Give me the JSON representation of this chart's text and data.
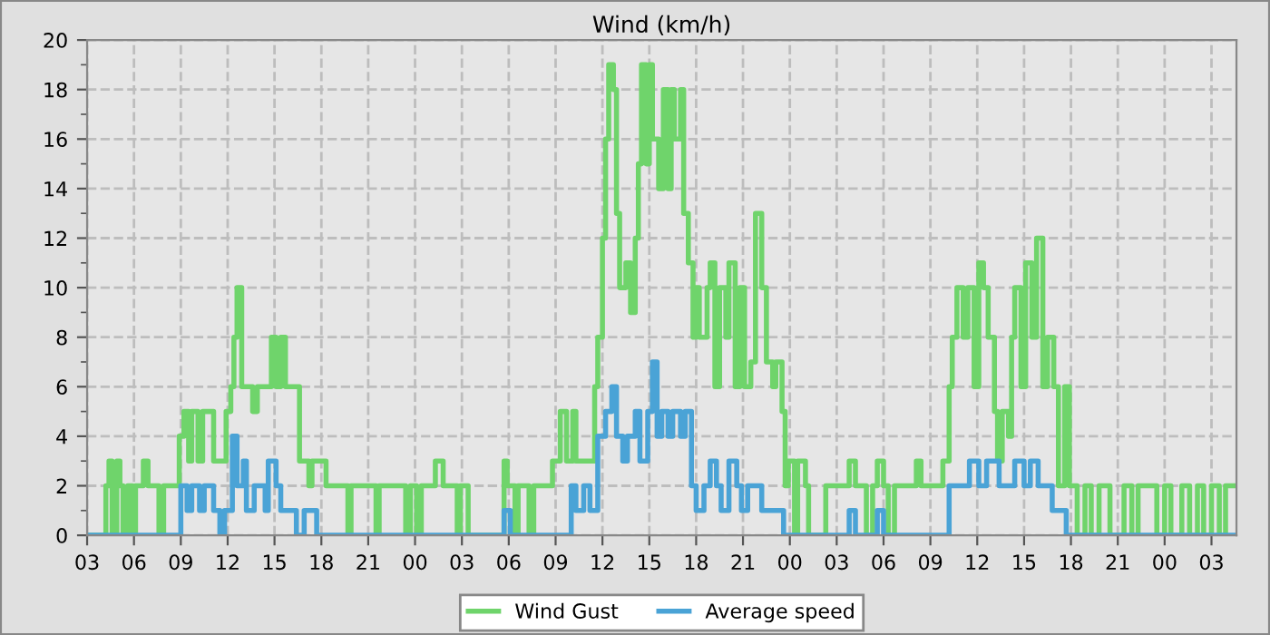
{
  "chart_data": {
    "type": "step",
    "title": "Wind (km/h)",
    "xlim": [
      3,
      76.6
    ],
    "ylim": [
      0,
      20
    ],
    "xticks": [
      {
        "value": 3,
        "label": "03"
      },
      {
        "value": 6,
        "label": "06"
      },
      {
        "value": 9,
        "label": "09"
      },
      {
        "value": 12,
        "label": "12"
      },
      {
        "value": 15,
        "label": "15"
      },
      {
        "value": 18,
        "label": "18"
      },
      {
        "value": 21,
        "label": "21"
      },
      {
        "value": 24,
        "label": "00"
      },
      {
        "value": 27,
        "label": "03"
      },
      {
        "value": 30,
        "label": "06"
      },
      {
        "value": 33,
        "label": "09"
      },
      {
        "value": 36,
        "label": "12"
      },
      {
        "value": 39,
        "label": "15"
      },
      {
        "value": 42,
        "label": "18"
      },
      {
        "value": 45,
        "label": "21"
      },
      {
        "value": 48,
        "label": "00"
      },
      {
        "value": 51,
        "label": "03"
      },
      {
        "value": 54,
        "label": "06"
      },
      {
        "value": 57,
        "label": "09"
      },
      {
        "value": 60,
        "label": "12"
      },
      {
        "value": 63,
        "label": "15"
      },
      {
        "value": 66,
        "label": "18"
      },
      {
        "value": 69,
        "label": "21"
      },
      {
        "value": 72,
        "label": "00"
      },
      {
        "value": 75,
        "label": "03"
      }
    ],
    "yticks": [
      0,
      {
        "value": 1,
        "label": null
      },
      2,
      {
        "value": 3,
        "label": null
      },
      4,
      {
        "value": 5,
        "label": null
      },
      6,
      {
        "value": 7,
        "label": null
      },
      8,
      {
        "value": 9,
        "label": null
      },
      10,
      {
        "value": 11,
        "label": null
      },
      12,
      {
        "value": 13,
        "label": null
      },
      14,
      {
        "value": 15,
        "label": null
      },
      16,
      {
        "value": 17,
        "label": null
      },
      18,
      {
        "value": 19,
        "label": null
      },
      20
    ],
    "grid": true,
    "legend": "bottom",
    "line_style": "solid",
    "series": [
      {
        "name": "Wind Gust",
        "color": "#6fd46b",
        "x": [
          3.0,
          4.2,
          4.4,
          4.6,
          4.9,
          5.1,
          5.3,
          5.6,
          5.9,
          6.1,
          6.6,
          6.9,
          7.6,
          7.9,
          8.6,
          8.9,
          9.2,
          9.5,
          9.7,
          10.1,
          10.4,
          10.8,
          11.1,
          11.5,
          11.9,
          12.2,
          12.4,
          12.6,
          12.9,
          13.2,
          13.6,
          13.9,
          14.5,
          14.8,
          15.1,
          15.4,
          15.7,
          16.5,
          16.6,
          17.2,
          17.4,
          17.9,
          18.3,
          19.5,
          19.7,
          19.9,
          21.2,
          21.5,
          21.7,
          23.4,
          23.7,
          24.1,
          24.4,
          25.3,
          25.8,
          26.7,
          26.9,
          27.4,
          29.7,
          29.9,
          30.4,
          30.6,
          31.3,
          31.6,
          32.3,
          32.8,
          33.3,
          33.7,
          34.1,
          34.3,
          35.3,
          35.5,
          35.7,
          36.0,
          36.2,
          36.4,
          36.7,
          36.9,
          37.1,
          37.5,
          37.8,
          38.1,
          38.3,
          38.5,
          38.8,
          39.0,
          39.2,
          39.6,
          39.9,
          40.2,
          40.4,
          40.6,
          41.0,
          41.2,
          41.5,
          41.8,
          42.0,
          42.2,
          42.7,
          42.9,
          43.2,
          43.5,
          43.9,
          44.1,
          44.5,
          44.8,
          45.1,
          45.5,
          45.8,
          46.2,
          46.5,
          46.9,
          47.1,
          47.5,
          47.7,
          47.9,
          48.3,
          48.5,
          49.0,
          49.2,
          49.9,
          50.3,
          51.8,
          52.2,
          52.9,
          53.3,
          53.6,
          54.0,
          54.3,
          54.7,
          56.1,
          56.4,
          57.2,
          57.8,
          58.2,
          58.4,
          58.7,
          59.1,
          59.4,
          59.8,
          60.1,
          60.4,
          60.7,
          61.1,
          61.3,
          61.6,
          62.0,
          62.2,
          62.4,
          62.8,
          63.1,
          63.5,
          63.8,
          64.2,
          64.5,
          64.9,
          65.2,
          65.6,
          65.9,
          66.4,
          66.9,
          67.3,
          67.8,
          68.5,
          69.4,
          69.9,
          70.3,
          71.0,
          71.5,
          72.0,
          72.4,
          73.1,
          73.6,
          74.1,
          74.5,
          75.0,
          75.5,
          75.9,
          76.6
        ],
        "values": [
          0,
          2,
          3,
          0,
          3,
          2,
          0,
          2,
          0,
          2,
          3,
          2,
          0,
          2,
          2,
          4,
          5,
          3,
          5,
          3,
          5,
          5,
          3,
          3,
          5,
          6,
          8,
          10,
          6,
          6,
          5,
          6,
          6,
          8,
          6,
          8,
          6,
          6,
          3,
          2,
          3,
          3,
          2,
          2,
          0,
          2,
          2,
          0,
          2,
          0,
          2,
          0,
          2,
          3,
          2,
          0,
          2,
          0,
          3,
          2,
          0,
          2,
          0,
          2,
          2,
          3,
          5,
          3,
          5,
          3,
          3,
          6,
          8,
          12,
          16,
          19,
          18,
          13,
          10,
          11,
          9,
          12,
          15,
          19,
          15,
          19,
          16,
          14,
          18,
          14,
          18,
          16,
          18,
          13,
          11,
          8,
          10,
          8,
          10,
          11,
          6,
          10,
          8,
          11,
          6,
          10,
          6,
          7,
          13,
          10,
          7,
          6,
          7,
          5,
          2,
          3,
          0,
          3,
          2,
          0,
          0,
          2,
          3,
          2,
          0,
          2,
          3,
          2,
          0,
          2,
          3,
          2,
          2,
          3,
          6,
          8,
          10,
          8,
          10,
          6,
          11,
          10,
          8,
          5,
          3,
          5,
          4,
          8,
          10,
          6,
          11,
          8,
          12,
          6,
          8,
          6,
          2,
          6,
          2,
          0,
          2,
          0,
          2,
          0,
          2,
          0,
          2,
          2,
          0,
          2,
          0,
          2,
          0,
          2,
          0,
          2,
          0,
          2,
          2
        ]
      },
      {
        "name": "Average speed",
        "color": "#4aa3d6",
        "x": [
          3.0,
          9.0,
          9.4,
          9.7,
          10.2,
          10.5,
          11.1,
          11.5,
          11.8,
          12.3,
          12.6,
          13.0,
          13.2,
          13.7,
          14.4,
          14.6,
          15.1,
          15.4,
          16.4,
          16.9,
          17.7,
          29.7,
          30.1,
          34.0,
          34.3,
          34.8,
          35.2,
          35.7,
          36.2,
          36.6,
          36.9,
          37.3,
          37.6,
          38.1,
          38.4,
          38.9,
          39.2,
          39.5,
          39.8,
          40.2,
          40.5,
          41.0,
          41.3,
          41.7,
          42.0,
          42.5,
          42.9,
          43.3,
          43.6,
          44.1,
          44.6,
          44.9,
          45.3,
          46.2,
          47.6,
          51.8,
          52.2,
          53.6,
          54.0,
          58.2,
          59.5,
          60.1,
          60.6,
          61.4,
          62.4,
          63.0,
          63.4,
          63.9,
          64.8,
          65.7,
          76.6
        ],
        "values": [
          0,
          2,
          1,
          2,
          1,
          2,
          1,
          0,
          1,
          4,
          2,
          3,
          1,
          2,
          1,
          3,
          2,
          1,
          0,
          1,
          0,
          1,
          0,
          2,
          1,
          2,
          1,
          4,
          5,
          6,
          4,
          3,
          4,
          5,
          3,
          5,
          7,
          4,
          5,
          4,
          5,
          4,
          5,
          2,
          1,
          2,
          3,
          2,
          1,
          3,
          2,
          1,
          2,
          1,
          0,
          1,
          0,
          1,
          0,
          2,
          3,
          2,
          3,
          2,
          3,
          2,
          3,
          2,
          1,
          0,
          0
        ]
      }
    ]
  }
}
